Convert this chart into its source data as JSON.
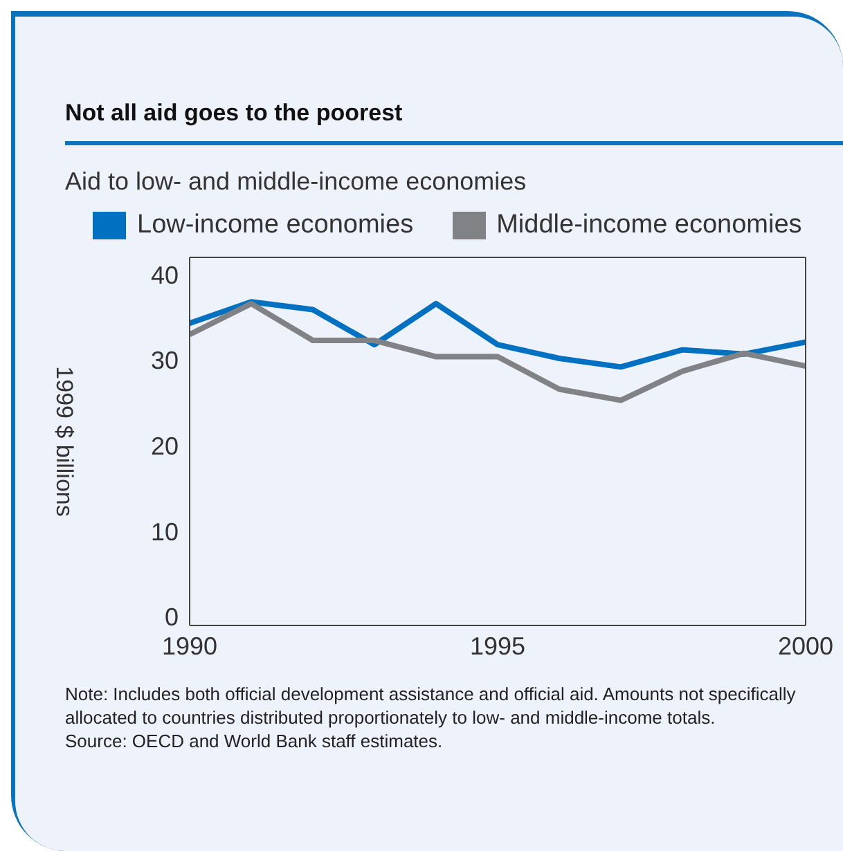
{
  "chart_data": {
    "type": "line",
    "title": "Not all aid goes to the poorest",
    "subtitle": "Aid to low- and middle-income economies",
    "ylabel": "1999 $ billions",
    "x": [
      1990,
      1991,
      1992,
      1993,
      1994,
      1995,
      1996,
      1997,
      1998,
      1999,
      2000
    ],
    "series": [
      {
        "name": "Low-income economies",
        "color": "#0070c0",
        "values": [
          34.3,
          36.8,
          35.9,
          31.8,
          36.6,
          31.8,
          30.2,
          29.2,
          31.2,
          30.7,
          32.1
        ]
      },
      {
        "name": "Middle-income economies",
        "color": "#808285",
        "values": [
          33.0,
          36.6,
          32.3,
          32.3,
          30.4,
          30.4,
          26.6,
          25.3,
          28.7,
          30.8,
          29.3
        ]
      }
    ],
    "xlim": [
      1990,
      2000
    ],
    "xticks": [
      1990,
      1995,
      2000
    ],
    "ylim": [
      -1,
      42
    ],
    "yticks": [
      0,
      10,
      20,
      30,
      40
    ],
    "grid": false,
    "legend": "top",
    "marker": "none",
    "line_style": "solid",
    "annotations": [
      "Note: Includes both official development assistance and official aid. Amounts not specifically allocated to countries distributed proportionately to low- and middle-income totals.",
      "Source: OECD and World Bank staff estimates."
    ]
  }
}
